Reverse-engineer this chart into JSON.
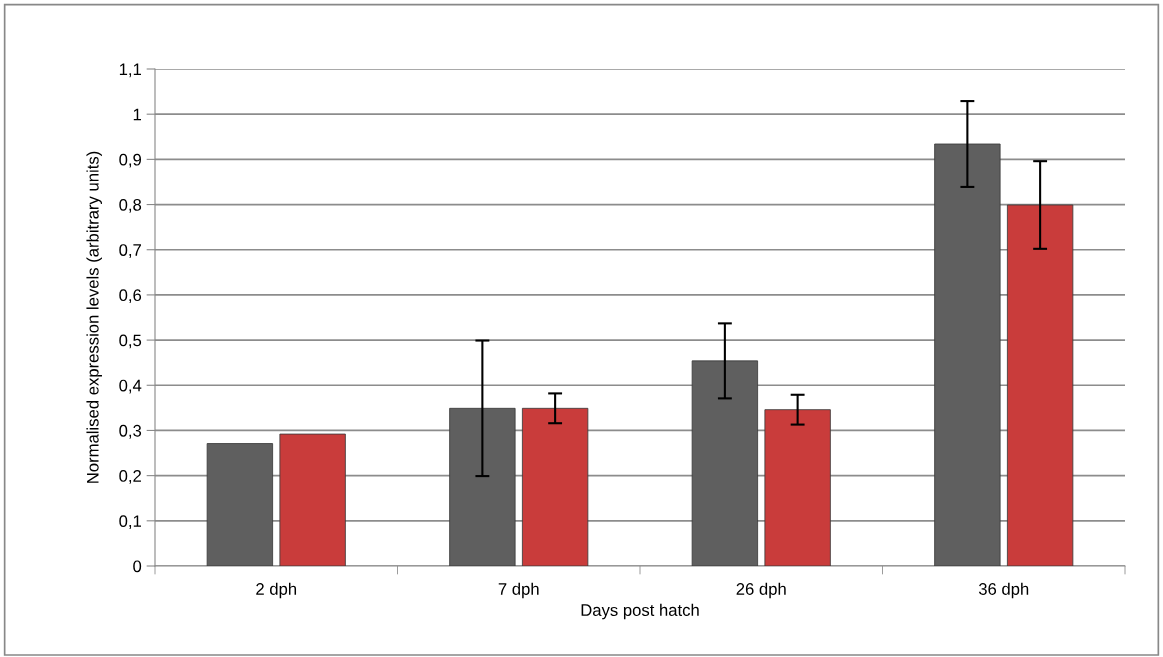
{
  "chart_data": {
    "type": "bar",
    "xlabel": "Days post hatch",
    "ylabel": "Normalised expression levels (arbitrary units)",
    "categories": [
      "2 dph",
      "7 dph",
      "26 dph",
      "36 dph"
    ],
    "series": [
      {
        "color": "#5f5f5f",
        "values": [
          0.271,
          0.349,
          0.454,
          0.934
        ],
        "errors": [
          null,
          0.15,
          0.083,
          0.095
        ]
      },
      {
        "color": "#c93c3b",
        "values": [
          0.292,
          0.349,
          0.346,
          0.799
        ],
        "errors": [
          null,
          0.033,
          0.033,
          0.097
        ]
      }
    ],
    "ylim": [
      0,
      1.1
    ],
    "yticks": [
      {
        "value": 0,
        "label": "0"
      },
      {
        "value": 0.1,
        "label": "0,1"
      },
      {
        "value": 0.2,
        "label": "0,2"
      },
      {
        "value": 0.3,
        "label": "0,3"
      },
      {
        "value": 0.4,
        "label": "0,4"
      },
      {
        "value": 0.5,
        "label": "0,5"
      },
      {
        "value": 0.6,
        "label": "0,6"
      },
      {
        "value": 0.7,
        "label": "0,7"
      },
      {
        "value": 0.8,
        "label": "0,8"
      },
      {
        "value": 0.9,
        "label": "0,9"
      },
      {
        "value": 1,
        "label": "1"
      },
      {
        "value": 1.1,
        "label": "1,1"
      }
    ],
    "grid": "y"
  }
}
